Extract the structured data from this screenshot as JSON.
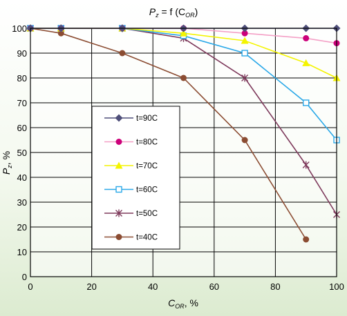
{
  "chart_data": {
    "type": "line",
    "title": {
      "main": "P",
      "main_sub": "z",
      "rest": " = f (C",
      "rest_sub": "OR",
      "close": ")"
    },
    "xlabel": {
      "main": "C",
      "sub": "OR",
      "suffix": ", %"
    },
    "ylabel": {
      "main": "P",
      "sub": "z",
      "suffix": ", %"
    },
    "xlim": [
      0,
      100
    ],
    "ylim": [
      0,
      100
    ],
    "xticks": [
      "0",
      "20",
      "40",
      "60",
      "80",
      "100"
    ],
    "yticks": [
      "0",
      "10",
      "20",
      "30",
      "40",
      "50",
      "60",
      "70",
      "80",
      "90",
      "100"
    ],
    "grid": "vertical every 20, horizontal every 10",
    "legend_placement": "center-left",
    "series": [
      {
        "name": "t=90C",
        "color": "#4f4f7a",
        "marker": "diamond",
        "x": [
          0,
          10,
          30,
          50,
          70,
          90,
          100
        ],
        "y": [
          100,
          100,
          100,
          100,
          100,
          100,
          100
        ]
      },
      {
        "name": "t=80C",
        "color": "#f4a0c6",
        "marker_color": "#cc007a",
        "marker": "circle",
        "x": [
          0,
          10,
          30,
          50,
          70,
          90,
          100
        ],
        "y": [
          100,
          100,
          100,
          100,
          98,
          96,
          94
        ]
      },
      {
        "name": "t=70C",
        "color": "#f4f400",
        "marker": "triangle",
        "x": [
          0,
          10,
          30,
          50,
          70,
          90,
          100
        ],
        "y": [
          100,
          100,
          100,
          98,
          95,
          86,
          80
        ]
      },
      {
        "name": "t=60C",
        "color": "#2aa8e8",
        "marker": "square",
        "x": [
          0,
          10,
          30,
          50,
          70,
          90,
          100
        ],
        "y": [
          100,
          100,
          100,
          97,
          90,
          70,
          55
        ]
      },
      {
        "name": "t=50C",
        "color": "#7e3a5c",
        "marker": "star",
        "x": [
          0,
          10,
          30,
          50,
          70,
          90,
          100
        ],
        "y": [
          100,
          100,
          100,
          96,
          80,
          45,
          25
        ]
      },
      {
        "name": "t=40C",
        "color": "#8b4c32",
        "marker": "circle",
        "x": [
          0,
          10,
          30,
          50,
          70,
          90
        ],
        "y": [
          100,
          98,
          90,
          80,
          55,
          15
        ]
      }
    ]
  }
}
